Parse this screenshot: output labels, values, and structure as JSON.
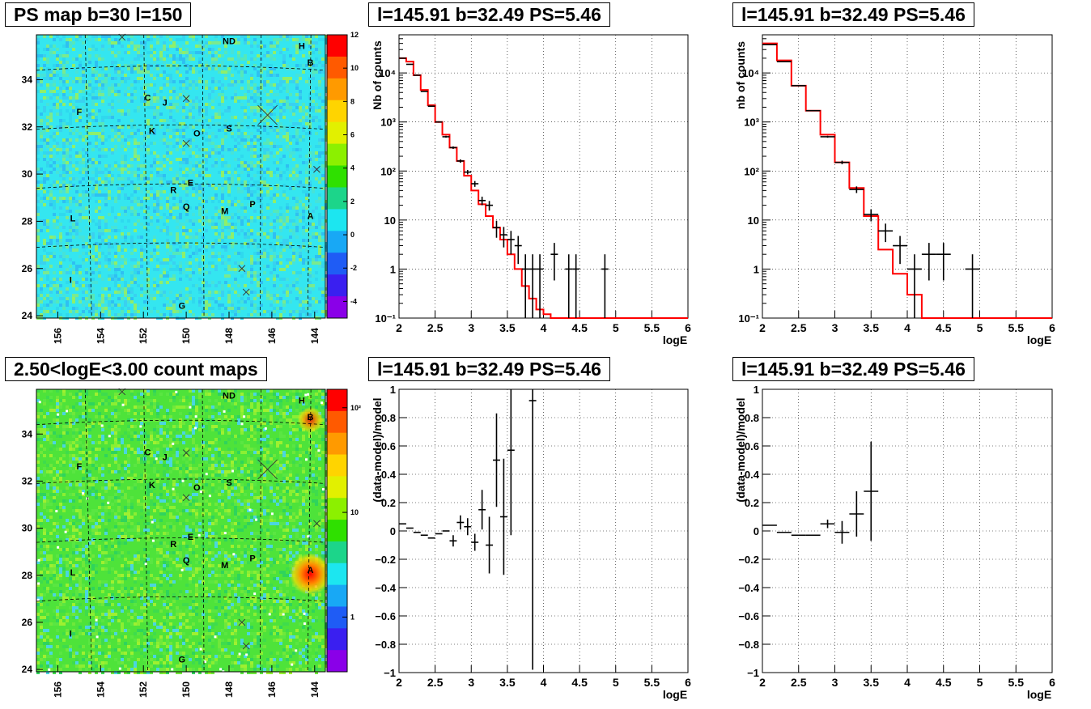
{
  "titles": {
    "map_ps": "PS map b=30 l=150",
    "map_counts": "2.50<logE<3.00 count maps",
    "spec_left": "l=145.91 b=32.49 PS=5.46",
    "spec_right": "l=145.91 b=32.49 PS=5.46",
    "res_left": "l=145.91 b=32.49 PS=5.46",
    "res_right": "l=145.91 b=32.49 PS=5.46"
  },
  "colors": {
    "model_line": "#ff0000",
    "data_points": "#000000",
    "ps_map_bg": "#34e6f0",
    "count_map_bg": "#4ee33a"
  },
  "chart_data": [
    {
      "id": "ps_map",
      "type": "heatmap",
      "title": "PS map b=30 l=150",
      "x_ticks": [
        156,
        154,
        152,
        150,
        148,
        146,
        144
      ],
      "y_ticks": [
        24,
        26,
        28,
        30,
        32,
        34
      ],
      "xlim": [
        157,
        143.5
      ],
      "ylim": [
        23.9,
        35.9
      ],
      "colorbar": {
        "min": -5,
        "max": 12,
        "ticks": [
          -4,
          -2,
          0,
          2,
          4,
          6,
          8,
          10,
          12
        ]
      },
      "labels": [
        {
          "text": "ND",
          "x": 148,
          "y": 35.5
        },
        {
          "text": "H",
          "x": 144.6,
          "y": 35.3
        },
        {
          "text": "B",
          "x": 144.2,
          "y": 34.6
        },
        {
          "text": "C",
          "x": 151.8,
          "y": 33.1
        },
        {
          "text": "J",
          "x": 151.0,
          "y": 32.9
        },
        {
          "text": "F",
          "x": 155.0,
          "y": 32.5
        },
        {
          "text": "K",
          "x": 151.6,
          "y": 31.7
        },
        {
          "text": "O",
          "x": 149.5,
          "y": 31.6
        },
        {
          "text": "S",
          "x": 148.0,
          "y": 31.8
        },
        {
          "text": "E",
          "x": 149.8,
          "y": 29.5
        },
        {
          "text": "R",
          "x": 150.6,
          "y": 29.2
        },
        {
          "text": "Q",
          "x": 150.0,
          "y": 28.5
        },
        {
          "text": "M",
          "x": 148.2,
          "y": 28.3
        },
        {
          "text": "P",
          "x": 146.9,
          "y": 28.6
        },
        {
          "text": "L",
          "x": 155.3,
          "y": 28.0
        },
        {
          "text": "A",
          "x": 144.2,
          "y": 28.1
        },
        {
          "text": "I",
          "x": 155.4,
          "y": 25.4
        },
        {
          "text": "G",
          "x": 150.2,
          "y": 24.3
        }
      ]
    },
    {
      "id": "count_map",
      "type": "heatmap",
      "title": "2.50<logE<3.00 count maps",
      "x_ticks": [
        156,
        154,
        152,
        150,
        148,
        146,
        144
      ],
      "y_ticks": [
        24,
        26,
        28,
        30,
        32,
        34
      ],
      "xlim": [
        157,
        143.5
      ],
      "ylim": [
        23.9,
        35.9
      ],
      "colorbar": {
        "log": true,
        "min": 0.3,
        "max": 150,
        "ticks": [
          "1",
          "10",
          "10²"
        ]
      },
      "labels": [
        {
          "text": "ND",
          "x": 148,
          "y": 35.5
        },
        {
          "text": "H",
          "x": 144.6,
          "y": 35.3
        },
        {
          "text": "B",
          "x": 144.2,
          "y": 34.6
        },
        {
          "text": "C",
          "x": 151.8,
          "y": 33.1
        },
        {
          "text": "J",
          "x": 151.0,
          "y": 32.9
        },
        {
          "text": "F",
          "x": 155.0,
          "y": 32.5
        },
        {
          "text": "K",
          "x": 151.6,
          "y": 31.7
        },
        {
          "text": "O",
          "x": 149.5,
          "y": 31.6
        },
        {
          "text": "S",
          "x": 148.0,
          "y": 31.8
        },
        {
          "text": "E",
          "x": 149.8,
          "y": 29.5
        },
        {
          "text": "R",
          "x": 150.6,
          "y": 29.2
        },
        {
          "text": "Q",
          "x": 150.0,
          "y": 28.5
        },
        {
          "text": "M",
          "x": 148.2,
          "y": 28.3
        },
        {
          "text": "P",
          "x": 146.9,
          "y": 28.6
        },
        {
          "text": "L",
          "x": 155.3,
          "y": 28.0
        },
        {
          "text": "A",
          "x": 144.2,
          "y": 28.1
        },
        {
          "text": "I",
          "x": 155.4,
          "y": 25.4
        },
        {
          "text": "G",
          "x": 150.2,
          "y": 24.3
        }
      ]
    },
    {
      "id": "spec_left",
      "type": "line",
      "title": "l=145.91 b=32.49 PS=5.46",
      "xlabel": "logE",
      "ylabel": "Nb of counts",
      "xlim": [
        2,
        6
      ],
      "ylim": [
        0.1,
        60000
      ],
      "ylog": true,
      "grid": true,
      "x_ticks": [
        "2",
        "2.5",
        "3",
        "3.5",
        "4",
        "4.5",
        "5",
        "5.5",
        "6"
      ],
      "y_ticks": [
        {
          "v": 0.1,
          "t": "10⁻¹"
        },
        {
          "v": 1,
          "t": "1"
        },
        {
          "v": 10,
          "t": "10"
        },
        {
          "v": 100,
          "t": "10²"
        },
        {
          "v": 1000,
          "t": "10³"
        },
        {
          "v": 10000,
          "t": "10⁴"
        }
      ],
      "model_step": {
        "edges": [
          2,
          2.1,
          2.2,
          2.3,
          2.4,
          2.5,
          2.6,
          2.7,
          2.8,
          2.9,
          3.0,
          3.1,
          3.2,
          3.3,
          3.4,
          3.5,
          3.6,
          3.7,
          3.8,
          3.9,
          4.0,
          4.1,
          4.2,
          6.0
        ],
        "values": [
          20000,
          17000,
          9000,
          4500,
          2200,
          1000,
          550,
          300,
          160,
          80,
          40,
          21,
          12,
          7,
          4,
          2,
          1,
          0.45,
          0.25,
          0.15,
          0.12,
          0.1,
          0.1
        ]
      },
      "data": [
        {
          "x": 2.05,
          "y": 20000
        },
        {
          "x": 2.15,
          "y": 15000
        },
        {
          "x": 2.25,
          "y": 9000
        },
        {
          "x": 2.35,
          "y": 4200
        },
        {
          "x": 2.45,
          "y": 2100
        },
        {
          "x": 2.55,
          "y": 1000
        },
        {
          "x": 2.65,
          "y": 500
        },
        {
          "x": 2.75,
          "y": 300
        },
        {
          "x": 2.85,
          "y": 160
        },
        {
          "x": 2.95,
          "y": 95
        },
        {
          "x": 3.05,
          "y": 55
        },
        {
          "x": 3.15,
          "y": 25
        },
        {
          "x": 3.25,
          "y": 20
        },
        {
          "x": 3.35,
          "y": 7
        },
        {
          "x": 3.45,
          "y": 5
        },
        {
          "x": 3.55,
          "y": 4
        },
        {
          "x": 3.65,
          "y": 3
        },
        {
          "x": 3.75,
          "y": 1
        },
        {
          "x": 3.85,
          "y": 1
        },
        {
          "x": 3.95,
          "y": 1
        },
        {
          "x": 4.15,
          "y": 2
        },
        {
          "x": 4.35,
          "y": 1
        },
        {
          "x": 4.45,
          "y": 1
        },
        {
          "x": 4.85,
          "y": 1
        }
      ]
    },
    {
      "id": "spec_right",
      "type": "line",
      "title": "l=145.91 b=32.49 PS=5.46",
      "xlabel": "logE",
      "ylabel": "nb of counts",
      "xlim": [
        2,
        6
      ],
      "ylim": [
        0.1,
        60000
      ],
      "ylog": true,
      "grid": true,
      "x_ticks": [
        "2",
        "2.5",
        "3",
        "3.5",
        "4",
        "4.5",
        "5",
        "5.5",
        "6"
      ],
      "y_ticks": [
        {
          "v": 0.1,
          "t": "10⁻¹"
        },
        {
          "v": 1,
          "t": "1"
        },
        {
          "v": 10,
          "t": "10"
        },
        {
          "v": 100,
          "t": "10²"
        },
        {
          "v": 1000,
          "t": "10³"
        },
        {
          "v": 10000,
          "t": "10⁴"
        }
      ],
      "model_step": {
        "edges": [
          2,
          2.2,
          2.4,
          2.6,
          2.8,
          3.0,
          3.2,
          3.4,
          3.6,
          3.8,
          4.0,
          4.2,
          6.0
        ],
        "values": [
          40000,
          18000,
          5500,
          1700,
          550,
          150,
          45,
          12,
          2.5,
          0.8,
          0.3,
          0.1
        ]
      },
      "data": [
        {
          "x": 2.1,
          "y": 38000
        },
        {
          "x": 2.3,
          "y": 17000
        },
        {
          "x": 2.5,
          "y": 5500
        },
        {
          "x": 2.7,
          "y": 1700
        },
        {
          "x": 2.9,
          "y": 500
        },
        {
          "x": 3.1,
          "y": 150
        },
        {
          "x": 3.3,
          "y": 42
        },
        {
          "x": 3.5,
          "y": 13
        },
        {
          "x": 3.7,
          "y": 6
        },
        {
          "x": 3.9,
          "y": 3
        },
        {
          "x": 4.1,
          "y": 1
        },
        {
          "x": 4.3,
          "y": 2
        },
        {
          "x": 4.5,
          "y": 2
        },
        {
          "x": 4.9,
          "y": 1
        }
      ]
    },
    {
      "id": "res_left",
      "type": "scatter",
      "title": "l=145.91 b=32.49 PS=5.46",
      "xlabel": "logE",
      "ylabel": "(data-model)/model",
      "xlim": [
        2,
        6
      ],
      "ylim": [
        -1,
        1
      ],
      "grid": true,
      "x_ticks": [
        "2",
        "2.5",
        "3",
        "3.5",
        "4",
        "4.5",
        "5",
        "5.5",
        "6"
      ],
      "y_ticks": [
        "-1",
        "-0.8",
        "-0.6",
        "-0.4",
        "-0.2",
        "0",
        "0.2",
        "0.4",
        "0.6",
        "0.8",
        "1"
      ],
      "data": [
        {
          "x": 2.05,
          "y": 0.05,
          "e": 0.0
        },
        {
          "x": 2.15,
          "y": 0.02,
          "e": 0.0
        },
        {
          "x": 2.25,
          "y": -0.01,
          "e": 0.0
        },
        {
          "x": 2.35,
          "y": -0.03,
          "e": 0.0
        },
        {
          "x": 2.45,
          "y": -0.05,
          "e": 0.0
        },
        {
          "x": 2.55,
          "y": -0.02,
          "e": 0.0
        },
        {
          "x": 2.65,
          "y": 0.0,
          "e": 0.0
        },
        {
          "x": 2.75,
          "y": -0.07,
          "e": 0.04
        },
        {
          "x": 2.85,
          "y": 0.06,
          "e": 0.05
        },
        {
          "x": 2.95,
          "y": 0.03,
          "e": 0.06
        },
        {
          "x": 3.05,
          "y": -0.08,
          "e": 0.06
        },
        {
          "x": 3.15,
          "y": 0.15,
          "e": 0.14
        },
        {
          "x": 3.25,
          "y": -0.1,
          "e": 0.2
        },
        {
          "x": 3.35,
          "y": 0.5,
          "e": 0.33
        },
        {
          "x": 3.45,
          "y": 0.1,
          "e": 0.41
        },
        {
          "x": 3.55,
          "y": 0.57,
          "e": 0.6
        },
        {
          "x": 3.85,
          "y": 0.92,
          "e": 1.9
        }
      ]
    },
    {
      "id": "res_right",
      "type": "scatter",
      "title": "l=145.91 b=32.49 PS=5.46",
      "xlabel": "logE",
      "ylabel": "(data-model)/model",
      "xlim": [
        2,
        6
      ],
      "ylim": [
        -1,
        1
      ],
      "grid": true,
      "x_ticks": [
        "2",
        "2.5",
        "3",
        "3.5",
        "4",
        "4.5",
        "5",
        "5.5",
        "6"
      ],
      "y_ticks": [
        "-1",
        "-0.8",
        "-0.6",
        "-0.4",
        "-0.2",
        "0",
        "0.2",
        "0.4",
        "0.6",
        "0.8",
        "1"
      ],
      "data": [
        {
          "x": 2.1,
          "y": 0.04,
          "e": 0.0
        },
        {
          "x": 2.3,
          "y": -0.01,
          "e": 0.0
        },
        {
          "x": 2.5,
          "y": -0.03,
          "e": 0.0
        },
        {
          "x": 2.7,
          "y": -0.03,
          "e": 0.0
        },
        {
          "x": 2.9,
          "y": 0.05,
          "e": 0.03
        },
        {
          "x": 3.1,
          "y": -0.01,
          "e": 0.08
        },
        {
          "x": 3.3,
          "y": 0.12,
          "e": 0.16
        },
        {
          "x": 3.5,
          "y": 0.28,
          "e": 0.35
        }
      ]
    }
  ]
}
